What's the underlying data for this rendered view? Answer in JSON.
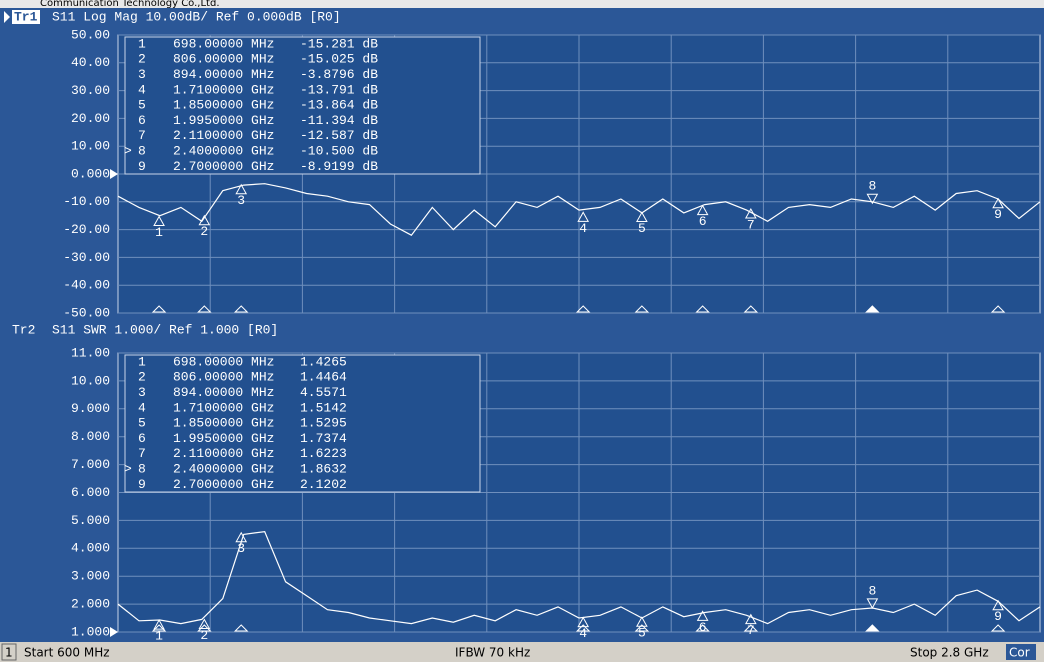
{
  "window_title": "Communication Technology Co.,Ltd.",
  "xlim": [
    600,
    2800
  ],
  "trace_x": [
    600,
    650,
    700,
    750,
    800,
    850,
    900,
    950,
    1000,
    1050,
    1100,
    1150,
    1200,
    1250,
    1300,
    1350,
    1400,
    1450,
    1500,
    1550,
    1600,
    1650,
    1700,
    1750,
    1800,
    1850,
    1900,
    1950,
    2000,
    2050,
    2100,
    2150,
    2200,
    2250,
    2300,
    2350,
    2400,
    2450,
    2500,
    2550,
    2600,
    2650,
    2700,
    2750,
    2800
  ],
  "traces": [
    {
      "label": "Tr1",
      "header": "S11 Log Mag 10.00dB/ Ref 0.000dB [R0]",
      "ylim": [
        -50,
        50
      ],
      "ref": 0,
      "yticks": [
        {
          "value": 50,
          "label": "50.00"
        },
        {
          "value": 40,
          "label": "40.00"
        },
        {
          "value": 30,
          "label": "30.00"
        },
        {
          "value": 20,
          "label": "20.00"
        },
        {
          "value": 10,
          "label": "10.00"
        },
        {
          "value": 0,
          "label": "0.000"
        },
        {
          "value": -10,
          "label": "-10.00"
        },
        {
          "value": -20,
          "label": "-20.00"
        },
        {
          "value": -30,
          "label": "-30.00"
        },
        {
          "value": -40,
          "label": "-40.00"
        },
        {
          "value": -50,
          "label": "-50.00"
        }
      ],
      "values": [
        -8,
        -12,
        -15,
        -12,
        -17,
        -6,
        -4,
        -3.5,
        -5,
        -7,
        -8,
        -10,
        -11,
        -18,
        -22,
        -12,
        -20,
        -13,
        -19,
        -10,
        -12,
        -8,
        -13,
        -12,
        -9,
        -14,
        -9,
        -14,
        -11,
        -10,
        -13,
        -17,
        -12,
        -11,
        -12,
        -9,
        -10,
        -12,
        -8,
        -13,
        -7,
        -6,
        -9,
        -16,
        -10
      ],
      "markers": [
        {
          "id": "1",
          "freq": 698,
          "freq_label": "698.00000 MHz",
          "value": -15.281,
          "value_label": "-15.281 dB"
        },
        {
          "id": "2",
          "freq": 806,
          "freq_label": "806.00000 MHz",
          "value": -15.025,
          "value_label": "-15.025 dB"
        },
        {
          "id": "3",
          "freq": 894,
          "freq_label": "894.00000 MHz",
          "value": -3.8796,
          "value_label": "-3.8796 dB"
        },
        {
          "id": "4",
          "freq": 1710,
          "freq_label": "1.7100000 GHz",
          "value": -13.791,
          "value_label": "-13.791 dB"
        },
        {
          "id": "5",
          "freq": 1850,
          "freq_label": "1.8500000 GHz",
          "value": -13.864,
          "value_label": "-13.864 dB"
        },
        {
          "id": "6",
          "freq": 1995,
          "freq_label": "1.9950000 GHz",
          "value": -11.394,
          "value_label": "-11.394 dB"
        },
        {
          "id": "7",
          "freq": 2110,
          "freq_label": "2.1100000 GHz",
          "value": -12.587,
          "value_label": "-12.587 dB"
        },
        {
          "id": "8",
          "prefix": ">",
          "freq": 2400,
          "freq_label": "2.4000000 GHz",
          "value": -10.5,
          "value_label": "-10.500 dB"
        },
        {
          "id": "9",
          "freq": 2700,
          "freq_label": "2.7000000 GHz",
          "value": -8.9199,
          "value_label": "-8.9199 dB"
        }
      ]
    },
    {
      "label": "Tr2",
      "header": "S11 SWR 1.000/ Ref 1.000 [R0]",
      "ylim": [
        1,
        11
      ],
      "ref": 1,
      "yticks": [
        {
          "value": 11,
          "label": "11.00"
        },
        {
          "value": 10,
          "label": "10.00"
        },
        {
          "value": 9,
          "label": "9.000"
        },
        {
          "value": 8,
          "label": "8.000"
        },
        {
          "value": 7,
          "label": "7.000"
        },
        {
          "value": 6,
          "label": "6.000"
        },
        {
          "value": 5,
          "label": "5.000"
        },
        {
          "value": 4,
          "label": "4.000"
        },
        {
          "value": 3,
          "label": "3.000"
        },
        {
          "value": 2,
          "label": "2.000"
        },
        {
          "value": 1,
          "label": "1.000"
        }
      ],
      "values": [
        2.0,
        1.4,
        1.43,
        1.3,
        1.45,
        2.2,
        4.5,
        4.6,
        2.8,
        2.3,
        1.8,
        1.7,
        1.5,
        1.4,
        1.3,
        1.5,
        1.35,
        1.6,
        1.4,
        1.8,
        1.6,
        1.9,
        1.5,
        1.6,
        1.9,
        1.5,
        1.9,
        1.55,
        1.7,
        1.8,
        1.6,
        1.3,
        1.7,
        1.8,
        1.6,
        1.8,
        1.86,
        1.7,
        2.0,
        1.6,
        2.3,
        2.5,
        2.1,
        1.4,
        1.9
      ],
      "markers": [
        {
          "id": "1",
          "freq": 698,
          "freq_label": "698.00000 MHz",
          "value": 1.4265,
          "value_label": "1.4265"
        },
        {
          "id": "2",
          "freq": 806,
          "freq_label": "806.00000 MHz",
          "value": 1.4464,
          "value_label": "1.4464"
        },
        {
          "id": "3",
          "freq": 894,
          "freq_label": "894.00000 MHz",
          "value": 4.5571,
          "value_label": "4.5571"
        },
        {
          "id": "4",
          "freq": 1710,
          "freq_label": "1.7100000 GHz",
          "value": 1.5142,
          "value_label": "1.5142"
        },
        {
          "id": "5",
          "freq": 1850,
          "freq_label": "1.8500000 GHz",
          "value": 1.5295,
          "value_label": "1.5295"
        },
        {
          "id": "6",
          "freq": 1995,
          "freq_label": "1.9950000 GHz",
          "value": 1.7374,
          "value_label": "1.7374"
        },
        {
          "id": "7",
          "freq": 2110,
          "freq_label": "2.1100000 GHz",
          "value": 1.6223,
          "value_label": "1.6223"
        },
        {
          "id": "8",
          "prefix": ">",
          "freq": 2400,
          "freq_label": "2.4000000 GHz",
          "value": 1.8632,
          "value_label": "1.8632"
        },
        {
          "id": "9",
          "freq": 2700,
          "freq_label": "2.7000000 GHz",
          "value": 2.1202,
          "value_label": "2.1202"
        }
      ]
    }
  ],
  "status": {
    "channel": "1",
    "start": "Start 600 MHz",
    "ifbw": "IFBW 70 kHz",
    "stop": "Stop 2.8 GHz",
    "cor": "Cor"
  }
}
